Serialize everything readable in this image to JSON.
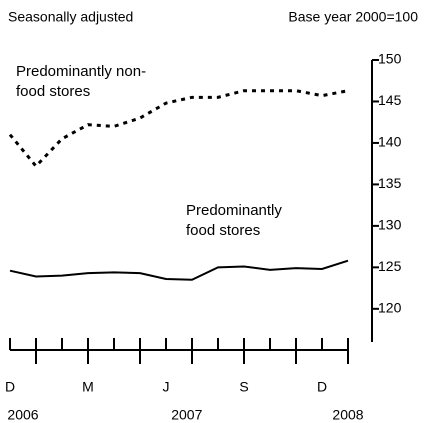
{
  "chart_data": {
    "type": "line",
    "subtitle": "Seasonally adjusted",
    "title": "Base year 2000=100",
    "categories": [
      "D",
      null,
      null,
      "M",
      null,
      null,
      "J",
      null,
      null,
      "S",
      null,
      null,
      "D",
      null
    ],
    "year_labels": [
      "2006",
      "2007",
      "2008"
    ],
    "series": [
      {
        "name": "Predominantly non-food stores",
        "color": "#000000",
        "dash": "dotted",
        "values": [
          141,
          137.2,
          140.5,
          142.2,
          142,
          143,
          144.8,
          145.5,
          145.5,
          146.3,
          146.3,
          146.3,
          145.7,
          146.3
        ]
      },
      {
        "name": "Predominantly food stores",
        "color": "#000000",
        "dash": "solid",
        "values": [
          124.6,
          123.9,
          124,
          124.3,
          124.4,
          124.3,
          123.6,
          123.5,
          125,
          125.1,
          124.7,
          124.9,
          124.8,
          125.8
        ]
      }
    ],
    "ylim": [
      116,
      150
    ],
    "yticks": [
      120,
      125,
      130,
      135,
      140,
      145,
      150
    ],
    "y_axis_side": "right"
  }
}
